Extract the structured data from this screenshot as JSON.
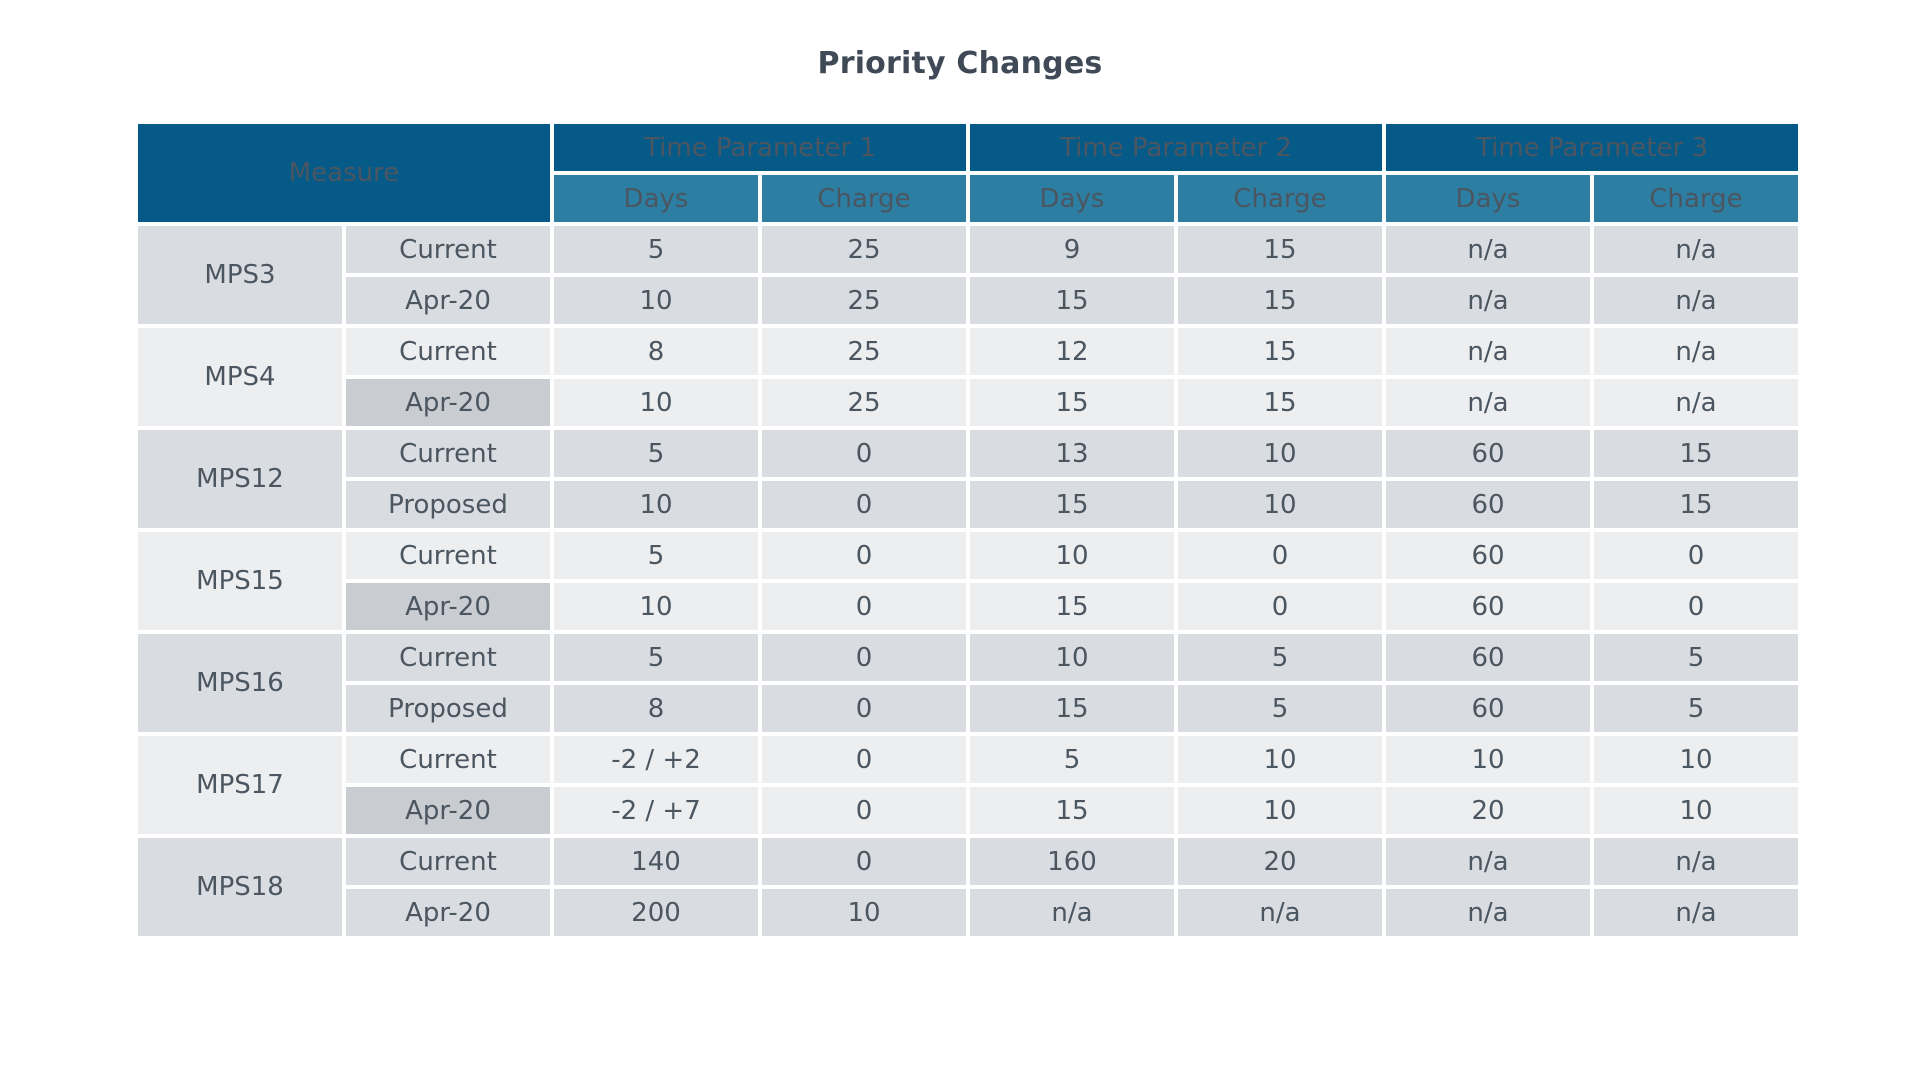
{
  "title": "Priority Changes",
  "header": {
    "measure": "Measure",
    "groups": [
      "Time Parameter 1",
      "Time Parameter 2",
      "Time Parameter 3"
    ],
    "sub": [
      "Days",
      "Charge",
      "Days",
      "Charge",
      "Days",
      "Charge"
    ]
  },
  "rows": [
    {
      "measure": "MPS3",
      "label": "Current",
      "values": [
        "5",
        "25",
        "9",
        "15",
        "n/a",
        "n/a"
      ]
    },
    {
      "measure": "MPS3",
      "label": "Apr-20",
      "values": [
        "10",
        "25",
        "15",
        "15",
        "n/a",
        "n/a"
      ]
    },
    {
      "measure": "MPS4",
      "label": "Current",
      "values": [
        "8",
        "25",
        "12",
        "15",
        "n/a",
        "n/a"
      ]
    },
    {
      "measure": "MPS4",
      "label": "Apr-20",
      "values": [
        "10",
        "25",
        "15",
        "15",
        "n/a",
        "n/a"
      ]
    },
    {
      "measure": "MPS12",
      "label": "Current",
      "values": [
        "5",
        "0",
        "13",
        "10",
        "60",
        "15"
      ]
    },
    {
      "measure": "MPS12",
      "label": "Proposed",
      "values": [
        "10",
        "0",
        "15",
        "10",
        "60",
        "15"
      ]
    },
    {
      "measure": "MPS15",
      "label": "Current",
      "values": [
        "5",
        "0",
        "10",
        "0",
        "60",
        "0"
      ]
    },
    {
      "measure": "MPS15",
      "label": "Apr-20",
      "values": [
        "10",
        "0",
        "15",
        "0",
        "60",
        "0"
      ]
    },
    {
      "measure": "MPS16",
      "label": "Current",
      "values": [
        "5",
        "0",
        "10",
        "5",
        "60",
        "5"
      ]
    },
    {
      "measure": "MPS16",
      "label": "Proposed",
      "values": [
        "8",
        "0",
        "15",
        "5",
        "60",
        "5"
      ]
    },
    {
      "measure": "MPS17",
      "label": "Current",
      "values": [
        "-2 / +2",
        "0",
        "5",
        "10",
        "10",
        "10"
      ]
    },
    {
      "measure": "MPS17",
      "label": "Apr-20",
      "values": [
        "-2 / +7",
        "0",
        "15",
        "10",
        "20",
        "10"
      ]
    },
    {
      "measure": "MPS18",
      "label": "Current",
      "values": [
        "140",
        "0",
        "160",
        "20",
        "n/a",
        "n/a"
      ]
    },
    {
      "measure": "MPS18",
      "label": "Apr-20",
      "values": [
        "200",
        "10",
        "n/a",
        "n/a",
        "n/a",
        "n/a"
      ]
    }
  ],
  "colors": {
    "header_dark": "#055a87",
    "header_mid": "#2c7ea3",
    "band_a": "#d9dde1",
    "band_b": "#eceef0",
    "label_highlight": "#c9cdd2"
  }
}
